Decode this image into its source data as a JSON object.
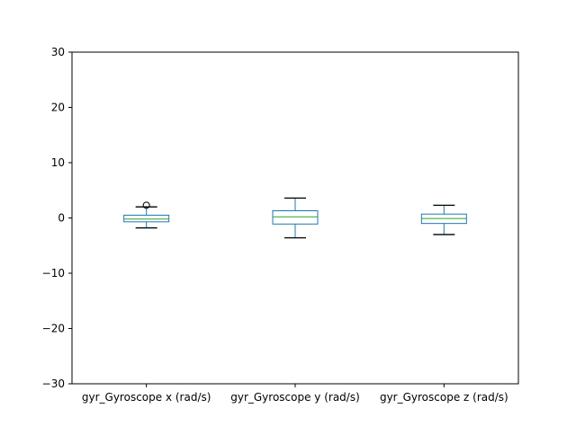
{
  "chart_data": {
    "type": "box",
    "categories": [
      "gyr_Gyroscope x (rad/s)",
      "gyr_Gyroscope y (rad/s)",
      "gyr_Gyroscope z (rad/s)"
    ],
    "boxes": [
      {
        "whisker_low": -1.8,
        "q1": -0.7,
        "median": -0.2,
        "q3": 0.5,
        "whisker_high": 2.0,
        "outliers": [
          2.3
        ]
      },
      {
        "whisker_low": -3.6,
        "q1": -1.1,
        "median": 0.2,
        "q3": 1.3,
        "whisker_high": 3.6,
        "outliers": []
      },
      {
        "whisker_low": -3.0,
        "q1": -1.0,
        "median": -0.1,
        "q3": 0.7,
        "whisker_high": 2.3,
        "outliers": []
      }
    ],
    "yticks": [
      -30,
      -20,
      -10,
      0,
      10,
      20,
      30
    ],
    "ylim": [
      -30,
      30
    ],
    "grid": false,
    "colors": {
      "box": "#1f77b4",
      "median": "#2ca02c",
      "whisker": "#000000",
      "outlier": "#000000"
    }
  }
}
